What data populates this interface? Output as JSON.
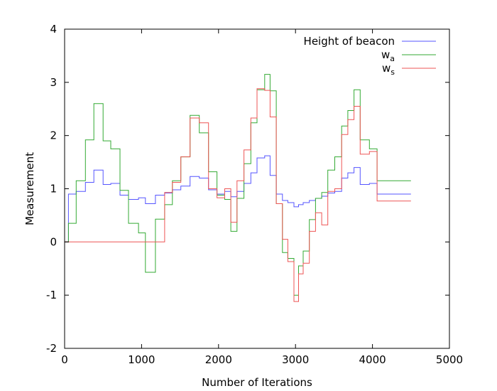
{
  "chart_data": {
    "type": "line",
    "step": true,
    "title": "",
    "xlabel": "Number of Iterations",
    "ylabel": "Measurement",
    "xlim": [
      0,
      5000
    ],
    "ylim": [
      -2,
      4
    ],
    "xticks": [
      0,
      1000,
      2000,
      3000,
      4000,
      5000
    ],
    "yticks": [
      -2,
      -1,
      0,
      1,
      2,
      3,
      4
    ],
    "grid": false,
    "legend_position": "top-right",
    "series": [
      {
        "name": "Height of beacon",
        "label_main": "Height of beacon",
        "label_sub": "",
        "color": "#5555ff",
        "x": [
          0,
          50,
          150,
          270,
          380,
          500,
          600,
          720,
          830,
          960,
          1050,
          1180,
          1300,
          1400,
          1510,
          1630,
          1750,
          1870,
          1980,
          2080,
          2160,
          2240,
          2330,
          2420,
          2500,
          2600,
          2670,
          2750,
          2830,
          2900,
          2980,
          3040,
          3100,
          3180,
          3260,
          3340,
          3420,
          3510,
          3600,
          3680,
          3760,
          3840,
          3960,
          4060,
          4500
        ],
        "y": [
          0,
          0.9,
          0.95,
          1.12,
          1.35,
          1.08,
          1.1,
          0.88,
          0.8,
          0.83,
          0.72,
          0.88,
          0.92,
          0.98,
          1.05,
          1.23,
          1.2,
          0.98,
          0.9,
          0.95,
          0.85,
          0.95,
          1.1,
          1.3,
          1.58,
          1.62,
          1.25,
          0.9,
          0.78,
          0.74,
          0.66,
          0.7,
          0.74,
          0.78,
          0.82,
          0.86,
          0.92,
          0.95,
          1.2,
          1.3,
          1.4,
          1.08,
          1.1,
          0.9,
          0.9
        ]
      },
      {
        "name": "wa",
        "label_main": "w",
        "label_sub": "a",
        "color": "#33aa33",
        "x": [
          0,
          50,
          150,
          270,
          380,
          500,
          600,
          720,
          830,
          960,
          1050,
          1180,
          1300,
          1400,
          1510,
          1630,
          1750,
          1870,
          1980,
          2080,
          2160,
          2240,
          2330,
          2420,
          2500,
          2600,
          2670,
          2750,
          2830,
          2900,
          2980,
          3040,
          3100,
          3180,
          3260,
          3340,
          3420,
          3510,
          3600,
          3680,
          3760,
          3840,
          3960,
          4060,
          4500
        ],
        "y": [
          0,
          0.35,
          1.15,
          1.92,
          2.6,
          1.9,
          1.75,
          0.97,
          0.35,
          0.17,
          -0.57,
          0.43,
          0.7,
          1.15,
          1.6,
          2.38,
          2.05,
          1.32,
          0.88,
          0.8,
          0.2,
          0.82,
          1.47,
          2.24,
          2.86,
          3.15,
          2.84,
          0.72,
          -0.2,
          -0.31,
          -1.0,
          -0.45,
          -0.17,
          0.42,
          0.82,
          0.93,
          1.35,
          1.6,
          2.18,
          2.47,
          2.86,
          1.92,
          1.75,
          1.15,
          1.15
        ]
      },
      {
        "name": "ws",
        "label_main": "w",
        "label_sub": "s",
        "color": "#ee5555",
        "x": [
          0,
          50,
          150,
          270,
          380,
          500,
          600,
          720,
          830,
          960,
          1050,
          1180,
          1300,
          1400,
          1510,
          1630,
          1750,
          1870,
          1980,
          2080,
          2160,
          2240,
          2330,
          2420,
          2500,
          2600,
          2670,
          2750,
          2830,
          2900,
          2980,
          3040,
          3100,
          3180,
          3260,
          3340,
          3420,
          3510,
          3600,
          3680,
          3760,
          3840,
          3960,
          4060,
          4500
        ],
        "y": [
          0,
          0,
          0,
          0,
          0,
          0,
          0,
          0,
          0,
          0,
          0,
          0,
          0.93,
          1.12,
          1.6,
          2.33,
          2.24,
          1.0,
          0.83,
          1.0,
          0.37,
          1.15,
          1.73,
          2.33,
          2.88,
          2.85,
          2.35,
          0.72,
          0.05,
          -0.37,
          -1.12,
          -0.6,
          -0.4,
          0.2,
          0.55,
          0.32,
          0.95,
          1.0,
          2.02,
          2.3,
          2.55,
          1.65,
          1.7,
          0.77,
          0.77
        ]
      }
    ]
  }
}
